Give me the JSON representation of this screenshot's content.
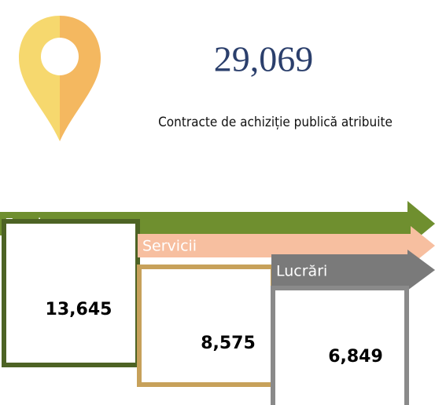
{
  "total": {
    "value": "29,069",
    "label": "Contracte de achiziție publică atribuite"
  },
  "categories": [
    {
      "name": "Furnizare",
      "value": "13,645"
    },
    {
      "name": "Servicii",
      "value": "8,575"
    },
    {
      "name": "Lucrări",
      "value": "6,849"
    }
  ]
}
